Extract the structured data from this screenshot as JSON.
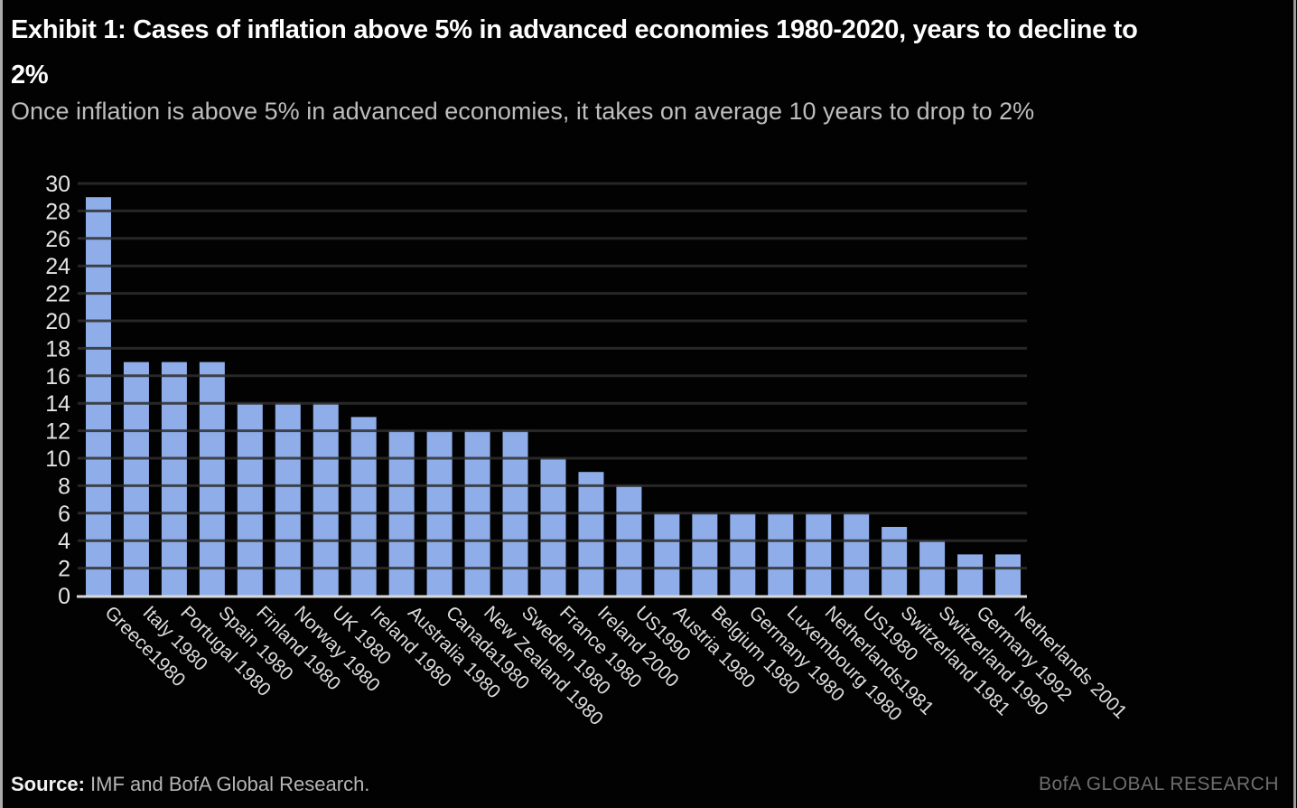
{
  "window": {
    "border_color": "#ABABAB",
    "background": "#020202"
  },
  "header": {
    "title_line1": "Exhibit 1: Cases of inflation above 5% in advanced economies 1980-2020, years to decline to",
    "title_line2": "2%",
    "subtitle": "Once inflation is above 5% in advanced economies, it takes on average 10 years to drop to 2%"
  },
  "chart_data": {
    "type": "bar",
    "title": "Exhibit 1: Cases of inflation above 5% in advanced economies 1980-2020, years to decline to 2%",
    "subtitle": "Once inflation is above 5% in advanced economies, it takes on average 10 years to drop to 2%",
    "categories": [
      "Greece1980",
      "Italy 1980",
      "Portugal 1980",
      "Spain 1980",
      "Finland 1980",
      "Norway 1980",
      "UK 1980",
      "Ireland 1980",
      "Australia 1980",
      "Canada1980",
      "New Zealand 1980",
      "Sweden 1980",
      "France 1980",
      "Ireland 2000",
      "US1990",
      "Austria 1980",
      "Belgium 1980",
      "Germany 1980",
      "Luxembourg 1980",
      "Netherlands1981",
      "US1980",
      "Switzerland 1981",
      "Switzerland 1990",
      "Germany 1992",
      "Netherlands 2001"
    ],
    "values": [
      29,
      17,
      17,
      17,
      14,
      14,
      14,
      13,
      12,
      12,
      12,
      12,
      10,
      9,
      8,
      6,
      6,
      6,
      6,
      6,
      6,
      5,
      4,
      3,
      3
    ],
    "xlabel": "",
    "ylabel": "",
    "ylim": [
      0,
      30
    ],
    "ytick_step": 2,
    "grid": true,
    "legend": false,
    "x_label_rotation_deg": 45,
    "bar_color": "#8FAEE9",
    "grid_color": "#2E2E2E",
    "axis_line_color": "#D9D9D9",
    "tick_label_color": "#E4E4E4",
    "category_label_color": "#DCDCDC",
    "plot_background": "#000000"
  },
  "footer": {
    "source_label": "Source:",
    "source_text": "IMF and BofA Global Research.",
    "brand": "BofA GLOBAL RESEARCH"
  }
}
